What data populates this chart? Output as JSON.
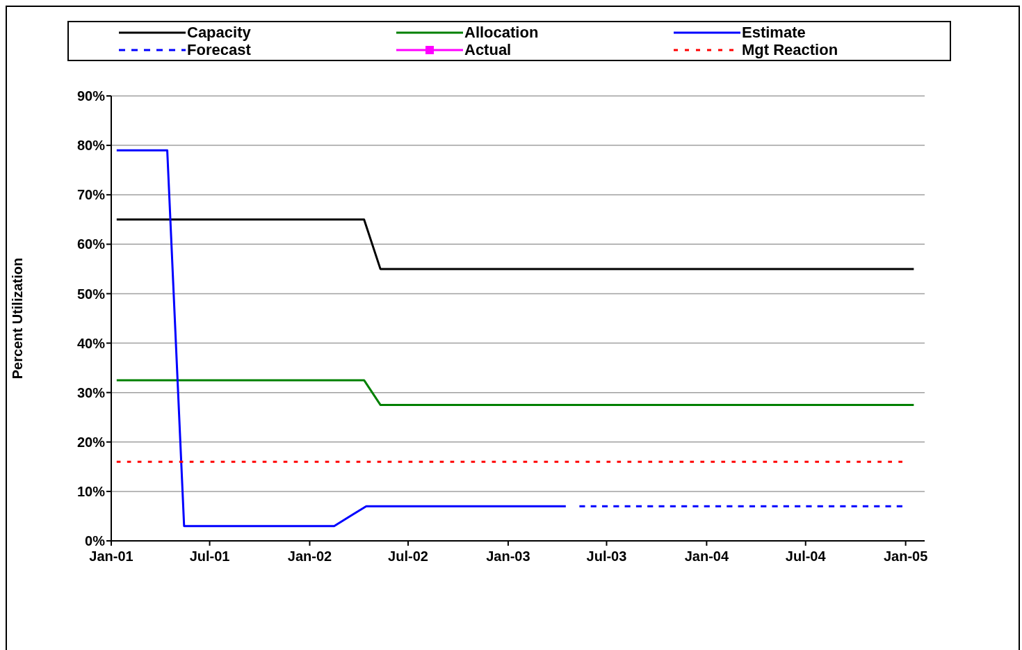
{
  "chart_data": {
    "type": "line",
    "ylabel": "Percent Utilization",
    "xlim": [
      "2001-01-01",
      "2005-02-05"
    ],
    "xticks": [
      {
        "value": "2001-01-01",
        "label": "Jan-01"
      },
      {
        "value": "2001-07-01",
        "label": "Jul-01"
      },
      {
        "value": "2002-01-01",
        "label": "Jan-02"
      },
      {
        "value": "2002-07-01",
        "label": "Jul-02"
      },
      {
        "value": "2003-01-01",
        "label": "Jan-03"
      },
      {
        "value": "2003-07-01",
        "label": "Jul-03"
      },
      {
        "value": "2004-01-01",
        "label": "Jan-04"
      },
      {
        "value": "2004-07-01",
        "label": "Jul-04"
      },
      {
        "value": "2005-01-01",
        "label": "Jan-05"
      }
    ],
    "ylim": [
      0,
      90
    ],
    "yticks": [
      {
        "value": 0,
        "label": "0%"
      },
      {
        "value": 10,
        "label": "10%"
      },
      {
        "value": 20,
        "label": "20%"
      },
      {
        "value": 30,
        "label": "30%"
      },
      {
        "value": 40,
        "label": "40%"
      },
      {
        "value": 50,
        "label": "50%"
      },
      {
        "value": 60,
        "label": "60%"
      },
      {
        "value": 70,
        "label": "70%"
      },
      {
        "value": 80,
        "label": "80%"
      },
      {
        "value": 90,
        "label": "90%"
      }
    ],
    "grid": "y",
    "legend": "top",
    "marker": "none",
    "line_style": "solid",
    "series": [
      {
        "name": "Capacity",
        "color": "#000000",
        "x": [
          "2001-01-11",
          "2002-04-11",
          "2002-05-11",
          "2005-01-16"
        ],
        "values": [
          65,
          65,
          55,
          55
        ]
      },
      {
        "name": "Allocation",
        "color": "#008000",
        "x": [
          "2001-01-11",
          "2002-04-11",
          "2002-05-11",
          "2005-01-16"
        ],
        "values": [
          32.5,
          32.5,
          27.5,
          27.5
        ]
      },
      {
        "name": "Estimate",
        "color": "#0000ff",
        "x": [
          "2001-01-11",
          "2001-04-14",
          "2001-05-15",
          "2002-02-15",
          "2002-04-15",
          "2003-04-17"
        ],
        "values": [
          79,
          79,
          3,
          3,
          7,
          7
        ]
      },
      {
        "name": "Forecast",
        "color": "#0000ff",
        "line_style": "dashed",
        "x": [
          "2003-05-12",
          "2004-12-26"
        ],
        "values": [
          7,
          7
        ]
      },
      {
        "name": "Actual",
        "color": "#ff00ff",
        "marker": "square"
      },
      {
        "name": "Mgt Reaction",
        "color": "#ff0000",
        "line_style": "dotted",
        "x": [
          "2001-01-11",
          "2004-12-26"
        ],
        "values": [
          16,
          16
        ]
      }
    ]
  }
}
